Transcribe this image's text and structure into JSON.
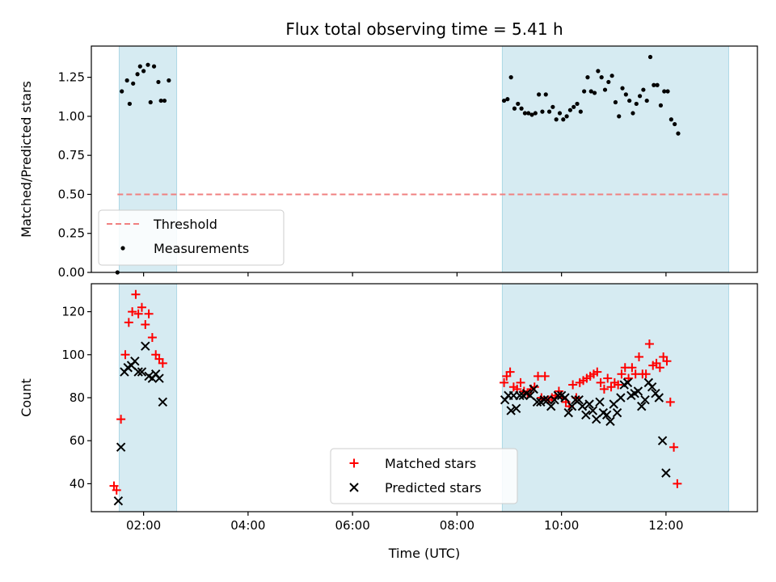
{
  "chart_data": [
    {
      "type": "scatter",
      "title": "Flux total observing time = 5.41 h",
      "xlabel": "",
      "ylabel": "Matched/Predicted stars",
      "xlim": [
        "01:00",
        "13:45"
      ],
      "ylim": [
        0,
        1.45
      ],
      "yticks": [
        "0.00",
        "0.25",
        "0.50",
        "0.75",
        "1.00",
        "1.25"
      ],
      "shaded_intervals": [
        [
          "01:32",
          "02:38"
        ],
        [
          "08:52",
          "13:12"
        ]
      ],
      "threshold": {
        "name": "Threshold",
        "value": 0.5,
        "x_range": [
          "01:30",
          "13:12"
        ],
        "color": "#f08080"
      },
      "series": [
        {
          "name": "Measurements",
          "color": "#000000",
          "points": [
            [
              "01:30",
              0.0
            ],
            [
              "01:35",
              1.16
            ],
            [
              "01:41",
              1.23
            ],
            [
              "01:44",
              1.08
            ],
            [
              "01:48",
              1.21
            ],
            [
              "01:53",
              1.27
            ],
            [
              "01:56",
              1.32
            ],
            [
              "02:00",
              1.29
            ],
            [
              "02:05",
              1.33
            ],
            [
              "02:08",
              1.09
            ],
            [
              "02:12",
              1.32
            ],
            [
              "02:17",
              1.22
            ],
            [
              "02:20",
              1.1
            ],
            [
              "02:24",
              1.1
            ],
            [
              "02:29",
              1.23
            ],
            [
              "08:54",
              1.1
            ],
            [
              "08:58",
              1.11
            ],
            [
              "09:02",
              1.25
            ],
            [
              "09:06",
              1.05
            ],
            [
              "09:10",
              1.08
            ],
            [
              "09:14",
              1.05
            ],
            [
              "09:18",
              1.02
            ],
            [
              "09:22",
              1.02
            ],
            [
              "09:26",
              1.01
            ],
            [
              "09:30",
              1.02
            ],
            [
              "09:34",
              1.14
            ],
            [
              "09:38",
              1.03
            ],
            [
              "09:42",
              1.14
            ],
            [
              "09:46",
              1.03
            ],
            [
              "09:50",
              1.06
            ],
            [
              "09:54",
              0.98
            ],
            [
              "09:58",
              1.02
            ],
            [
              "10:02",
              0.98
            ],
            [
              "10:06",
              1.0
            ],
            [
              "10:10",
              1.04
            ],
            [
              "10:14",
              1.06
            ],
            [
              "10:18",
              1.08
            ],
            [
              "10:22",
              1.03
            ],
            [
              "10:26",
              1.16
            ],
            [
              "10:30",
              1.25
            ],
            [
              "10:34",
              1.16
            ],
            [
              "10:38",
              1.15
            ],
            [
              "10:42",
              1.29
            ],
            [
              "10:46",
              1.25
            ],
            [
              "10:50",
              1.17
            ],
            [
              "10:54",
              1.22
            ],
            [
              "10:58",
              1.26
            ],
            [
              "11:02",
              1.09
            ],
            [
              "11:06",
              1.0
            ],
            [
              "11:10",
              1.18
            ],
            [
              "11:14",
              1.14
            ],
            [
              "11:18",
              1.1
            ],
            [
              "11:22",
              1.02
            ],
            [
              "11:26",
              1.08
            ],
            [
              "11:30",
              1.13
            ],
            [
              "11:34",
              1.17
            ],
            [
              "11:38",
              1.1
            ],
            [
              "11:42",
              1.38
            ],
            [
              "11:46",
              1.2
            ],
            [
              "11:50",
              1.2
            ],
            [
              "11:54",
              1.07
            ],
            [
              "11:58",
              1.16
            ],
            [
              "12:02",
              1.16
            ],
            [
              "12:06",
              0.98
            ],
            [
              "12:10",
              0.95
            ],
            [
              "12:14",
              0.89
            ]
          ]
        }
      ],
      "legend": {
        "position": "lower-left"
      }
    },
    {
      "type": "scatter",
      "title": "",
      "xlabel": "Time (UTC)",
      "ylabel": "Count",
      "xlim": [
        "01:00",
        "13:45"
      ],
      "ylim": [
        27,
        133
      ],
      "xticks": [
        "02:00",
        "04:00",
        "06:00",
        "08:00",
        "10:00",
        "12:00"
      ],
      "yticks": [
        40,
        60,
        80,
        100,
        120
      ],
      "shaded_intervals": [
        [
          "01:32",
          "02:38"
        ],
        [
          "08:52",
          "13:12"
        ]
      ],
      "series": [
        {
          "name": "Matched stars",
          "color": "#ff0000",
          "marker": "+",
          "points": [
            [
              "01:26",
              39
            ],
            [
              "01:29",
              37
            ],
            [
              "01:34",
              70
            ],
            [
              "01:39",
              100
            ],
            [
              "01:43",
              115
            ],
            [
              "01:47",
              120
            ],
            [
              "01:51",
              128
            ],
            [
              "01:54",
              119
            ],
            [
              "01:58",
              122
            ],
            [
              "02:02",
              114
            ],
            [
              "02:06",
              119
            ],
            [
              "02:10",
              108
            ],
            [
              "02:14",
              100
            ],
            [
              "02:18",
              98
            ],
            [
              "02:22",
              96
            ],
            [
              "08:54",
              87
            ],
            [
              "08:57",
              90
            ],
            [
              "09:01",
              92
            ],
            [
              "09:05",
              85
            ],
            [
              "09:09",
              84
            ],
            [
              "09:13",
              87
            ],
            [
              "09:17",
              83
            ],
            [
              "09:21",
              82
            ],
            [
              "09:25",
              84
            ],
            [
              "09:29",
              85
            ],
            [
              "09:33",
              90
            ],
            [
              "09:37",
              80
            ],
            [
              "09:41",
              90
            ],
            [
              "09:45",
              79
            ],
            [
              "09:49",
              80
            ],
            [
              "09:53",
              81
            ],
            [
              "09:57",
              83
            ],
            [
              "10:01",
              80
            ],
            [
              "10:05",
              78
            ],
            [
              "10:09",
              76
            ],
            [
              "10:13",
              86
            ],
            [
              "10:17",
              80
            ],
            [
              "10:21",
              87
            ],
            [
              "10:25",
              88
            ],
            [
              "10:29",
              89
            ],
            [
              "10:33",
              90
            ],
            [
              "10:37",
              91
            ],
            [
              "10:41",
              92
            ],
            [
              "10:45",
              87
            ],
            [
              "10:49",
              84
            ],
            [
              "10:53",
              89
            ],
            [
              "10:57",
              85
            ],
            [
              "11:01",
              87
            ],
            [
              "11:05",
              86
            ],
            [
              "11:09",
              91
            ],
            [
              "11:13",
              94
            ],
            [
              "11:17",
              89
            ],
            [
              "11:21",
              94
            ],
            [
              "11:25",
              91
            ],
            [
              "11:29",
              99
            ],
            [
              "11:33",
              91
            ],
            [
              "11:37",
              91
            ],
            [
              "11:41",
              105
            ],
            [
              "11:45",
              95
            ],
            [
              "11:49",
              96
            ],
            [
              "11:53",
              94
            ],
            [
              "11:57",
              99
            ],
            [
              "12:01",
              97
            ],
            [
              "12:05",
              78
            ],
            [
              "12:09",
              57
            ],
            [
              "12:13",
              40
            ]
          ]
        },
        {
          "name": "Predicted stars",
          "color": "#000000",
          "marker": "x",
          "points": [
            [
              "01:31",
              32
            ],
            [
              "01:34",
              57
            ],
            [
              "01:38",
              92
            ],
            [
              "01:42",
              94
            ],
            [
              "01:46",
              95
            ],
            [
              "01:50",
              97
            ],
            [
              "01:54",
              92
            ],
            [
              "01:58",
              92
            ],
            [
              "02:02",
              104
            ],
            [
              "02:06",
              90
            ],
            [
              "02:10",
              89
            ],
            [
              "02:14",
              91
            ],
            [
              "02:18",
              89
            ],
            [
              "02:22",
              78
            ],
            [
              "08:55",
              79
            ],
            [
              "08:59",
              81
            ],
            [
              "09:02",
              74
            ],
            [
              "09:05",
              81
            ],
            [
              "09:08",
              75
            ],
            [
              "09:12",
              81
            ],
            [
              "09:16",
              81
            ],
            [
              "09:20",
              82
            ],
            [
              "09:24",
              81
            ],
            [
              "09:28",
              84
            ],
            [
              "09:32",
              78
            ],
            [
              "09:36",
              78
            ],
            [
              "09:40",
              79
            ],
            [
              "09:44",
              79
            ],
            [
              "09:48",
              76
            ],
            [
              "09:52",
              79
            ],
            [
              "09:56",
              81
            ],
            [
              "10:00",
              81
            ],
            [
              "10:04",
              80
            ],
            [
              "10:08",
              73
            ],
            [
              "10:12",
              76
            ],
            [
              "10:16",
              79
            ],
            [
              "10:20",
              79
            ],
            [
              "10:24",
              76
            ],
            [
              "10:28",
              72
            ],
            [
              "10:32",
              77
            ],
            [
              "10:36",
              74
            ],
            [
              "10:40",
              70
            ],
            [
              "10:44",
              78
            ],
            [
              "10:48",
              73
            ],
            [
              "10:52",
              72
            ],
            [
              "10:56",
              69
            ],
            [
              "11:00",
              77
            ],
            [
              "11:04",
              73
            ],
            [
              "11:08",
              80
            ],
            [
              "11:12",
              86
            ],
            [
              "11:16",
              87
            ],
            [
              "11:20",
              81
            ],
            [
              "11:24",
              82
            ],
            [
              "11:28",
              83
            ],
            [
              "11:32",
              76
            ],
            [
              "11:36",
              79
            ],
            [
              "11:40",
              87
            ],
            [
              "11:44",
              85
            ],
            [
              "11:48",
              82
            ],
            [
              "11:52",
              80
            ],
            [
              "11:56",
              60
            ],
            [
              "12:00",
              45
            ]
          ]
        }
      ],
      "legend": {
        "position": "lower-center"
      }
    }
  ]
}
